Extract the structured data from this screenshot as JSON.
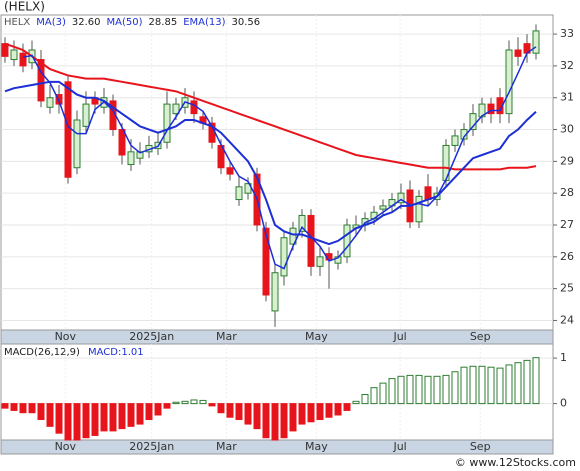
{
  "chart_data": {
    "type": "candlestick",
    "title": "(HELX)",
    "ticker": "HELX",
    "open": [
      32.7,
      32.2,
      32.4,
      32.1,
      32.2,
      30.7,
      31.1,
      31.5,
      28.8,
      30.1,
      31.0,
      30.7,
      30.9,
      30.0,
      28.9,
      29.1,
      29.3,
      29.4,
      29.6,
      30.5,
      30.7,
      30.9,
      30.4,
      30.2,
      29.5,
      28.8,
      27.8,
      28.0,
      28.6,
      26.9,
      24.3,
      25.4,
      26.4,
      26.8,
      27.3,
      25.7,
      26.1,
      25.8,
      26.0,
      26.9,
      27.0,
      27.2,
      27.5,
      27.6,
      27.7,
      28.1,
      27.1,
      28.2,
      27.8,
      28.4,
      29.5,
      29.7,
      30.0,
      30.4,
      30.8,
      31.0,
      30.5,
      32.5,
      32.7,
      32.4
    ],
    "high": [
      32.9,
      32.8,
      32.7,
      32.8,
      32.5,
      31.4,
      31.4,
      31.7,
      30.6,
      31.2,
      31.2,
      31.3,
      31.1,
      30.2,
      29.7,
      29.6,
      29.8,
      29.9,
      31.2,
      31.0,
      31.3,
      31.2,
      30.6,
      30.4,
      29.7,
      29.0,
      28.5,
      28.5,
      28.8,
      27.1,
      25.8,
      26.8,
      27.1,
      27.5,
      27.5,
      26.3,
      26.3,
      26.2,
      27.2,
      27.3,
      27.4,
      27.6,
      27.8,
      28.0,
      28.3,
      28.4,
      28.1,
      28.6,
      28.2,
      29.7,
      30.0,
      30.2,
      30.8,
      31.0,
      31.0,
      31.3,
      32.8,
      32.9,
      33.0,
      33.3
    ],
    "low": [
      32.1,
      32.0,
      31.8,
      31.9,
      30.7,
      30.5,
      30.5,
      28.3,
      28.6,
      29.9,
      30.5,
      30.5,
      29.8,
      28.9,
      28.7,
      28.9,
      29.1,
      29.2,
      29.4,
      30.3,
      30.5,
      30.2,
      30.0,
      29.4,
      28.6,
      28.4,
      27.6,
      27.8,
      26.8,
      24.6,
      23.8,
      25.1,
      26.2,
      26.6,
      25.4,
      25.4,
      25.0,
      25.6,
      25.8,
      26.7,
      26.8,
      27.0,
      27.3,
      27.4,
      27.5,
      26.9,
      26.9,
      27.6,
      27.6,
      28.2,
      29.3,
      29.5,
      29.8,
      30.2,
      30.2,
      30.2,
      30.2,
      32.0,
      32.1,
      32.2
    ],
    "close": [
      32.3,
      32.5,
      32.0,
      32.5,
      30.9,
      31.0,
      30.8,
      28.5,
      30.3,
      30.8,
      30.8,
      31.0,
      30.0,
      29.2,
      29.3,
      29.3,
      29.5,
      29.6,
      30.8,
      30.8,
      31.0,
      30.5,
      30.2,
      29.6,
      28.8,
      28.6,
      28.2,
      28.3,
      27.0,
      24.8,
      25.5,
      26.6,
      26.9,
      27.3,
      25.7,
      26.0,
      25.9,
      26.0,
      27.0,
      27.0,
      27.2,
      27.4,
      27.6,
      27.8,
      28.0,
      27.1,
      27.9,
      27.8,
      28.0,
      29.5,
      29.8,
      30.0,
      30.5,
      30.8,
      30.5,
      30.5,
      32.5,
      32.3,
      32.4,
      33.1
    ],
    "lines": [
      {
        "name": "MA(50)",
        "color": "#e8141c",
        "values": [
          32.7,
          32.6,
          32.5,
          32.3,
          32.1,
          31.9,
          31.8,
          31.7,
          31.65,
          31.6,
          31.6,
          31.6,
          31.55,
          31.5,
          31.45,
          31.4,
          31.35,
          31.3,
          31.25,
          31.2,
          31.1,
          31.0,
          30.9,
          30.8,
          30.7,
          30.6,
          30.5,
          30.4,
          30.3,
          30.2,
          30.1,
          30.0,
          29.9,
          29.8,
          29.7,
          29.6,
          29.5,
          29.4,
          29.3,
          29.2,
          29.15,
          29.1,
          29.05,
          29.0,
          28.95,
          28.9,
          28.85,
          28.8,
          28.8,
          28.8,
          28.75,
          28.75,
          28.75,
          28.75,
          28.75,
          28.75,
          28.8,
          28.8,
          28.8,
          28.85
        ]
      },
      {
        "name": "EMA(13)",
        "color": "#1c2fd6",
        "values": [
          31.2,
          31.3,
          31.35,
          31.4,
          31.45,
          31.5,
          31.5,
          31.3,
          31.1,
          31.0,
          31.0,
          30.9,
          30.7,
          30.5,
          30.3,
          30.1,
          30.0,
          29.9,
          30.0,
          30.1,
          30.3,
          30.3,
          30.2,
          30.1,
          29.9,
          29.6,
          29.3,
          29.0,
          28.5,
          27.8,
          27.0,
          26.8,
          26.7,
          26.7,
          26.6,
          26.5,
          26.4,
          26.5,
          26.7,
          26.9,
          27.0,
          27.1,
          27.3,
          27.4,
          27.6,
          27.6,
          27.7,
          27.8,
          27.9,
          28.2,
          28.5,
          28.8,
          29.1,
          29.2,
          29.3,
          29.4,
          29.8,
          30.0,
          30.3,
          30.56
        ]
      },
      {
        "name": "MA(3)",
        "color": "#1c2fd6",
        "values": [
          null,
          null,
          32.27,
          32.33,
          31.8,
          31.47,
          30.9,
          30.1,
          29.87,
          29.87,
          30.63,
          30.87,
          30.6,
          30.07,
          29.5,
          29.27,
          29.37,
          29.47,
          29.97,
          30.4,
          30.87,
          30.77,
          30.57,
          30.1,
          29.53,
          29.0,
          28.53,
          28.37,
          27.83,
          26.7,
          25.77,
          25.63,
          26.33,
          26.93,
          26.63,
          26.33,
          25.87,
          25.97,
          26.3,
          26.67,
          27.07,
          27.2,
          27.4,
          27.6,
          27.8,
          27.63,
          27.67,
          27.6,
          27.9,
          28.43,
          29.1,
          29.77,
          30.1,
          30.43,
          30.6,
          30.6,
          31.17,
          31.77,
          32.4,
          32.6
        ]
      }
    ],
    "legend": [
      {
        "label": "MA(3)",
        "value": "32.60"
      },
      {
        "label": "MA(50)",
        "value": "28.85"
      },
      {
        "label": "EMA(13)",
        "value": "30.56"
      }
    ],
    "up_color": "#2e7d32",
    "down_color": "#e8141c",
    "ylim": [
      23.7,
      33.6
    ],
    "yticks": [
      24,
      25,
      26,
      27,
      28,
      29,
      30,
      31,
      32,
      33
    ],
    "xticks": [
      {
        "value": 6.7,
        "label": "Nov"
      },
      {
        "value": 16.3,
        "label": "2025Jan"
      },
      {
        "value": 24.6,
        "label": "Mar"
      },
      {
        "value": 34.6,
        "label": "May"
      },
      {
        "value": 43.9,
        "label": "Jul"
      },
      {
        "value": 52.8,
        "label": "Sep"
      }
    ],
    "grid": true,
    "macd": {
      "label": "MACD(26,12,9)",
      "value_label": "MACD:1.01",
      "values": [
        -0.1,
        -0.15,
        -0.2,
        -0.2,
        -0.35,
        -0.5,
        -0.65,
        -0.8,
        -0.8,
        -0.75,
        -0.7,
        -0.6,
        -0.6,
        -0.55,
        -0.5,
        -0.45,
        -0.35,
        -0.25,
        -0.1,
        0.03,
        0.05,
        0.08,
        0.07,
        -0.05,
        -0.2,
        -0.3,
        -0.35,
        -0.45,
        -0.55,
        -0.75,
        -0.8,
        -0.75,
        -0.6,
        -0.45,
        -0.4,
        -0.35,
        -0.3,
        -0.25,
        -0.15,
        0.05,
        0.2,
        0.35,
        0.45,
        0.55,
        0.6,
        0.62,
        0.62,
        0.6,
        0.6,
        0.62,
        0.7,
        0.8,
        0.82,
        0.82,
        0.8,
        0.78,
        0.85,
        0.9,
        0.95,
        1.01
      ],
      "ylim": [
        -0.8,
        1.31
      ],
      "yticks": [
        0,
        1
      ]
    }
  },
  "footer": "© www.12Stocks.com"
}
